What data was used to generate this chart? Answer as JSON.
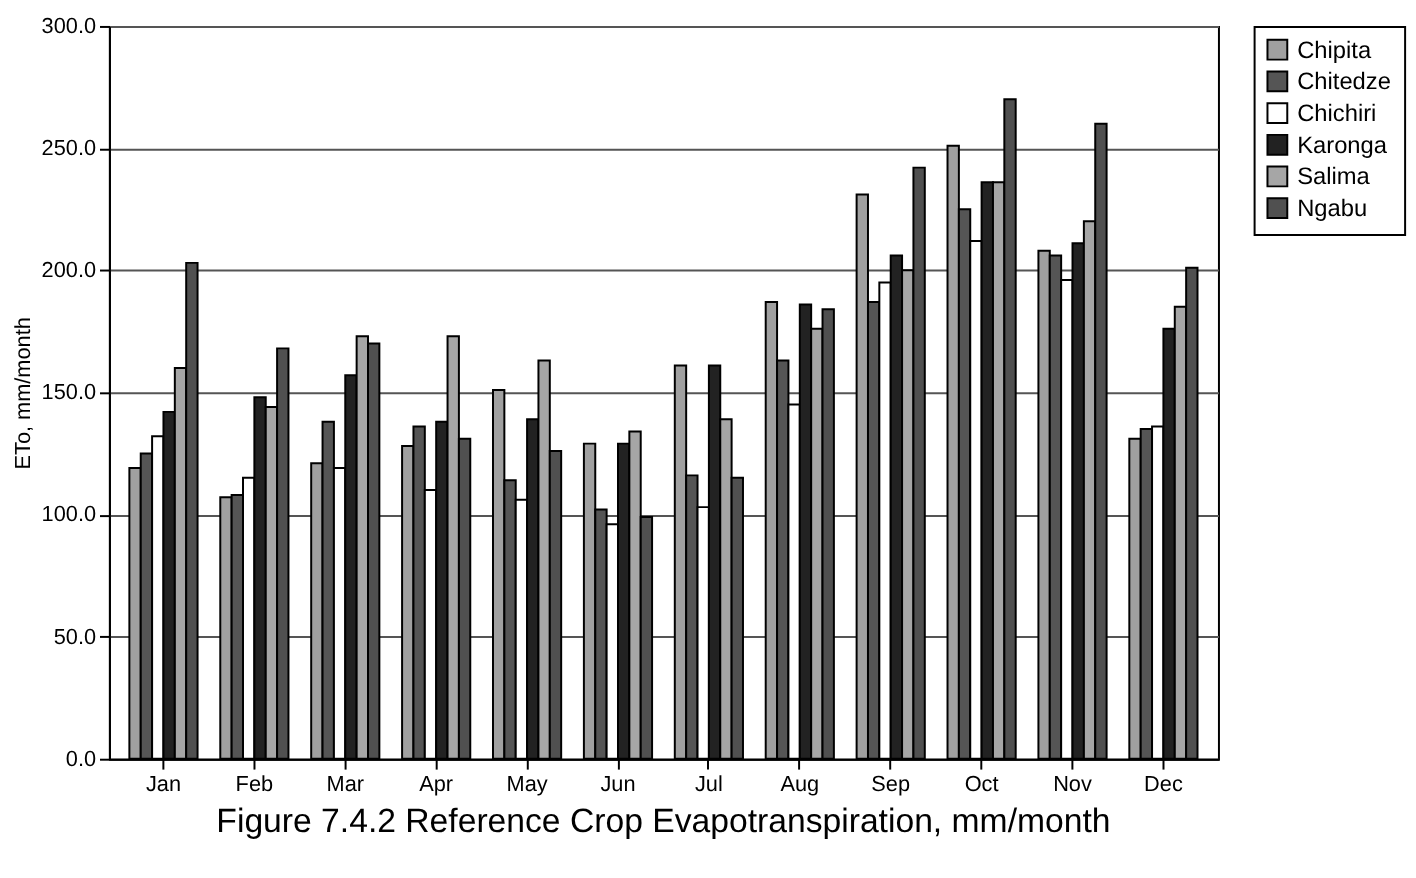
{
  "chart_data": {
    "type": "bar",
    "title": "Figure 7.4.2    Reference Crop Evapotranspiration, mm/month",
    "ylabel": "ETo, mm/month",
    "categories": [
      "Jan",
      "Feb",
      "Mar",
      "Apr",
      "May",
      "Jun",
      "Jul",
      "Aug",
      "Sep",
      "Oct",
      "Nov",
      "Dec"
    ],
    "series": [
      {
        "name": "Chipita",
        "color": "#a0a0a0",
        "values": [
          119,
          107,
          121,
          128,
          151,
          129,
          161,
          187,
          231,
          251,
          208,
          131
        ]
      },
      {
        "name": "Chitedze",
        "color": "#555555",
        "values": [
          125,
          108,
          138,
          136,
          114,
          102,
          116,
          163,
          187,
          225,
          206,
          135
        ]
      },
      {
        "name": "Chichiri",
        "color": "#ffffff",
        "values": [
          132,
          115,
          119,
          110,
          106,
          96,
          103,
          145,
          195,
          212,
          196,
          136
        ]
      },
      {
        "name": "Karonga",
        "color": "#222222",
        "values": [
          142,
          148,
          157,
          138,
          139,
          129,
          161,
          186,
          206,
          236,
          211,
          176
        ]
      },
      {
        "name": "Salima",
        "color": "#a6a6a6",
        "values": [
          160,
          144,
          173,
          173,
          163,
          134,
          139,
          176,
          200,
          236,
          220,
          185
        ]
      },
      {
        "name": "Ngabu",
        "color": "#505050",
        "values": [
          203,
          168,
          170,
          131,
          126,
          99,
          115,
          184,
          242,
          270,
          260,
          201
        ]
      }
    ],
    "ylim": [
      0,
      300
    ],
    "yticks": [
      {
        "value": 0,
        "label": "0.0"
      },
      {
        "value": 50,
        "label": "50.0"
      },
      {
        "value": 100,
        "label": "100.0"
      },
      {
        "value": 150,
        "label": "150.0"
      },
      {
        "value": 200,
        "label": "200.0"
      },
      {
        "value": 250,
        "label": "250.0"
      },
      {
        "value": 300,
        "label": "300.0"
      }
    ],
    "grid": "y",
    "legend": "right"
  }
}
